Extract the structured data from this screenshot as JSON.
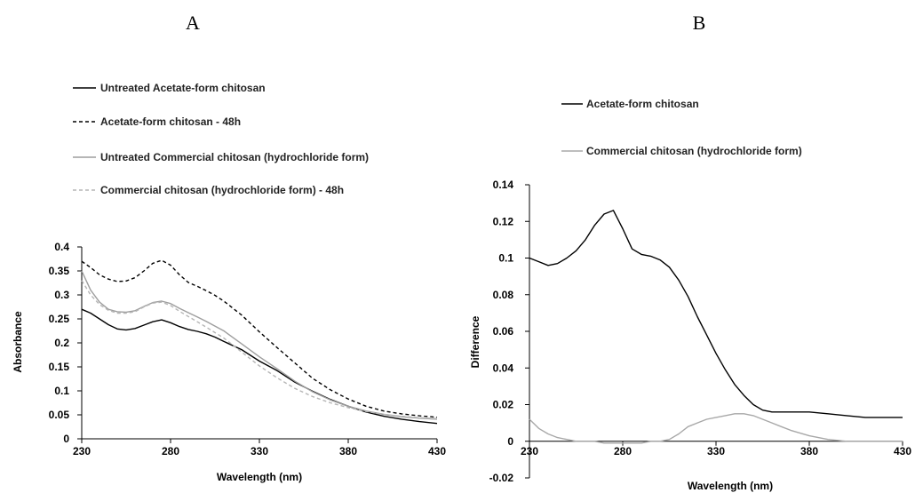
{
  "chart_data": [
    {
      "panel": "A",
      "type": "line",
      "xlabel": "Wavelength (nm)",
      "ylabel": "Absorbance",
      "xlim": [
        230,
        430
      ],
      "ylim": [
        0,
        0.4
      ],
      "xticks": [
        "230",
        "280",
        "330",
        "380",
        "430"
      ],
      "yticks": [
        "0",
        "0.05",
        "0.1",
        "0.15",
        "0.2",
        "0.25",
        "0.3",
        "0.35",
        "0.4"
      ],
      "legend_position": "top-left",
      "grid": false,
      "series": [
        {
          "name": "Untreated Acetate-form chitosan",
          "color": "#000000",
          "dash": "solid",
          "x": [
            230,
            235,
            240,
            245,
            250,
            255,
            260,
            265,
            270,
            275,
            280,
            285,
            290,
            295,
            300,
            305,
            310,
            320,
            330,
            340,
            350,
            360,
            370,
            380,
            390,
            400,
            410,
            420,
            430
          ],
          "y": [
            0.27,
            0.262,
            0.25,
            0.238,
            0.229,
            0.227,
            0.23,
            0.237,
            0.244,
            0.248,
            0.242,
            0.234,
            0.228,
            0.224,
            0.219,
            0.212,
            0.203,
            0.186,
            0.162,
            0.142,
            0.118,
            0.099,
            0.082,
            0.068,
            0.056,
            0.047,
            0.041,
            0.036,
            0.032
          ]
        },
        {
          "name": "Acetate-form chitosan - 48h",
          "color": "#000000",
          "dash": "dashed",
          "x": [
            230,
            235,
            240,
            245,
            250,
            255,
            260,
            265,
            270,
            275,
            280,
            285,
            290,
            295,
            300,
            305,
            310,
            320,
            330,
            340,
            350,
            360,
            370,
            380,
            390,
            400,
            410,
            420,
            430
          ],
          "y": [
            0.37,
            0.357,
            0.342,
            0.333,
            0.328,
            0.329,
            0.336,
            0.35,
            0.366,
            0.372,
            0.362,
            0.342,
            0.326,
            0.318,
            0.309,
            0.299,
            0.287,
            0.258,
            0.223,
            0.19,
            0.158,
            0.126,
            0.102,
            0.083,
            0.068,
            0.058,
            0.052,
            0.048,
            0.045
          ]
        },
        {
          "name": "Untreated Commercial chitosan (hydrochloride form)",
          "color": "#9e9e9e",
          "dash": "solid",
          "x": [
            230,
            235,
            240,
            245,
            250,
            255,
            260,
            265,
            270,
            275,
            280,
            285,
            290,
            295,
            300,
            310,
            320,
            330,
            340,
            350,
            360,
            370,
            380,
            390,
            400,
            410,
            420,
            430
          ],
          "y": [
            0.35,
            0.31,
            0.285,
            0.27,
            0.265,
            0.264,
            0.267,
            0.276,
            0.284,
            0.287,
            0.282,
            0.272,
            0.263,
            0.254,
            0.245,
            0.225,
            0.198,
            0.171,
            0.146,
            0.12,
            0.098,
            0.081,
            0.068,
            0.058,
            0.051,
            0.046,
            0.043,
            0.041
          ]
        },
        {
          "name": "Commercial chitosan (hydrochloride form) - 48h",
          "color": "#b5b5b5",
          "dash": "dashed",
          "x": [
            230,
            235,
            240,
            245,
            250,
            255,
            260,
            265,
            270,
            275,
            280,
            285,
            290,
            295,
            300,
            310,
            320,
            330,
            340,
            350,
            360,
            370,
            380,
            390,
            400,
            410,
            420,
            430
          ],
          "y": [
            0.33,
            0.3,
            0.28,
            0.268,
            0.262,
            0.262,
            0.265,
            0.275,
            0.283,
            0.285,
            0.278,
            0.266,
            0.255,
            0.244,
            0.233,
            0.21,
            0.181,
            0.152,
            0.127,
            0.105,
            0.088,
            0.075,
            0.065,
            0.057,
            0.051,
            0.047,
            0.044,
            0.042
          ]
        }
      ]
    },
    {
      "panel": "B",
      "type": "line",
      "xlabel": "Wavelength (nm)",
      "ylabel": "Difference",
      "xlim": [
        230,
        430
      ],
      "ylim": [
        -0.02,
        0.14
      ],
      "xticks": [
        "230",
        "280",
        "330",
        "380",
        "430"
      ],
      "yticks": [
        "-0.02",
        "0",
        "0.02",
        "0.04",
        "0.06",
        "0.08",
        "0.1",
        "0.12",
        "0.14"
      ],
      "legend_position": "top-left",
      "grid": false,
      "series": [
        {
          "name": "Acetate-form chitosan",
          "color": "#000000",
          "dash": "solid",
          "x": [
            230,
            235,
            240,
            245,
            250,
            255,
            260,
            265,
            270,
            275,
            280,
            285,
            290,
            295,
            300,
            305,
            310,
            315,
            320,
            325,
            330,
            335,
            340,
            345,
            350,
            355,
            360,
            370,
            380,
            390,
            400,
            410,
            420,
            430
          ],
          "y": [
            0.1,
            0.098,
            0.096,
            0.097,
            0.1,
            0.104,
            0.11,
            0.118,
            0.124,
            0.126,
            0.116,
            0.105,
            0.102,
            0.101,
            0.099,
            0.095,
            0.088,
            0.079,
            0.068,
            0.058,
            0.048,
            0.039,
            0.031,
            0.025,
            0.02,
            0.017,
            0.016,
            0.016,
            0.016,
            0.015,
            0.014,
            0.013,
            0.013,
            0.013
          ]
        },
        {
          "name": "Commercial chitosan (hydrochloride form)",
          "color": "#a8a8a8",
          "dash": "solid",
          "x": [
            230,
            235,
            240,
            245,
            250,
            255,
            260,
            265,
            270,
            275,
            280,
            285,
            290,
            295,
            300,
            305,
            310,
            315,
            320,
            325,
            330,
            335,
            340,
            345,
            350,
            355,
            360,
            365,
            370,
            380,
            390,
            400,
            410,
            420,
            430
          ],
          "y": [
            0.012,
            0.007,
            0.004,
            0.002,
            0.001,
            0.0,
            0.0,
            0.0,
            -0.001,
            -0.001,
            -0.001,
            -0.001,
            -0.001,
            0.0,
            0.0,
            0.001,
            0.004,
            0.008,
            0.01,
            0.012,
            0.013,
            0.014,
            0.015,
            0.015,
            0.014,
            0.012,
            0.01,
            0.008,
            0.006,
            0.003,
            0.001,
            0.0,
            0.0,
            0.0,
            0.0
          ]
        }
      ]
    }
  ]
}
